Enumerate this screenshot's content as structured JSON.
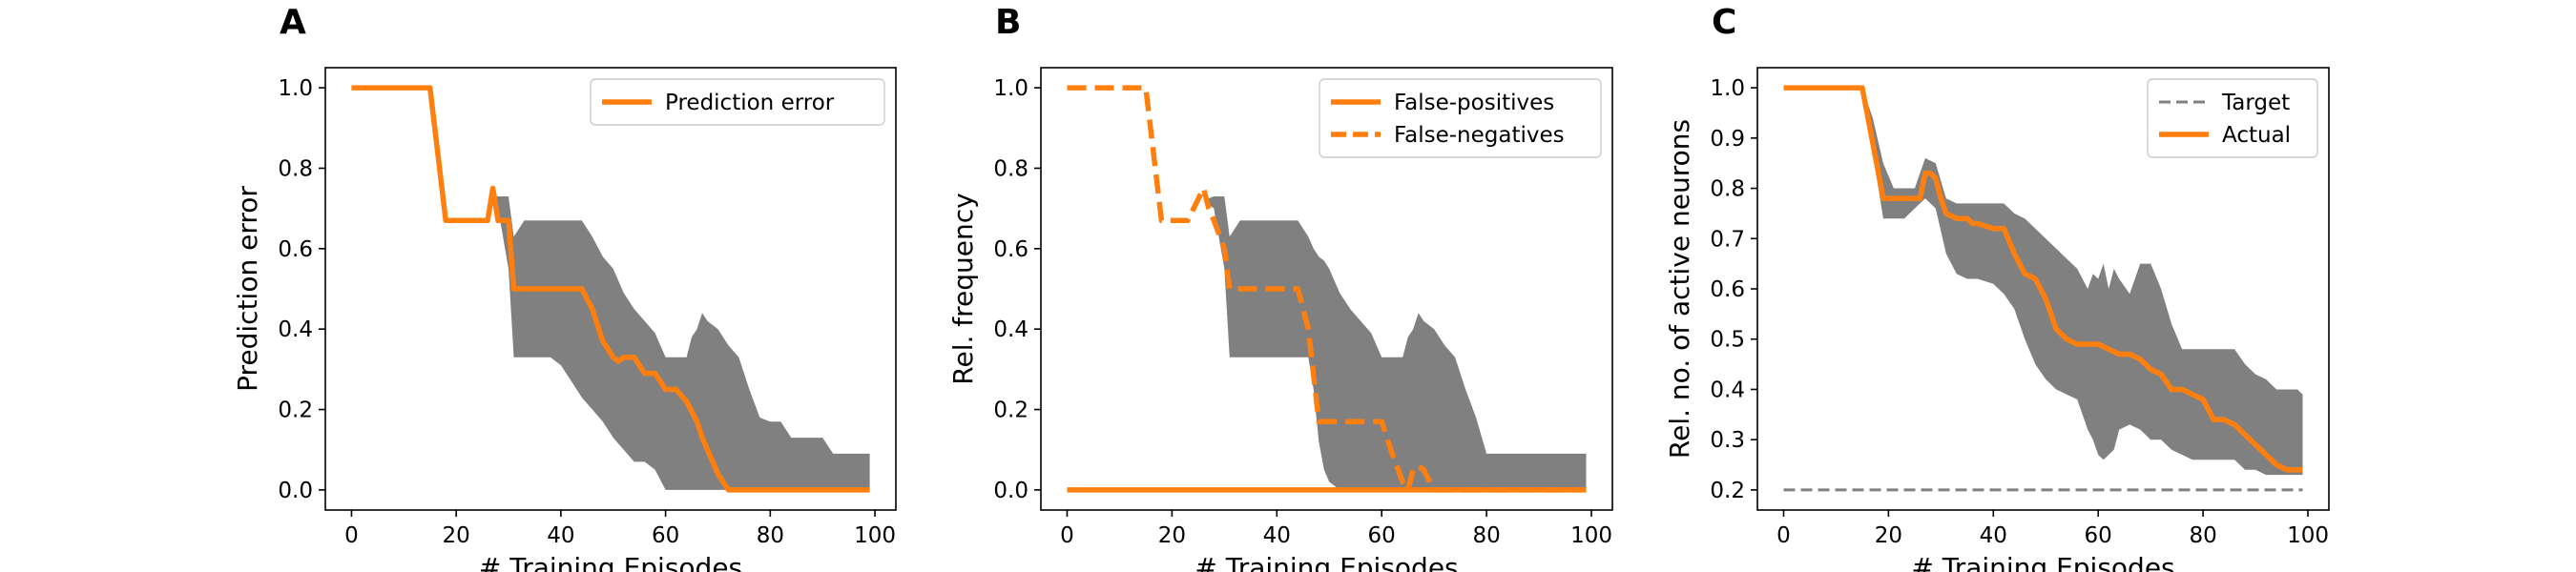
{
  "colors": {
    "line": "#ff7f0e",
    "band": "#808080",
    "target": "#808080"
  },
  "chart_data": [
    {
      "type": "line",
      "panel_label": "A",
      "xlabel": "# Training Episodes",
      "ylabel": "Prediction error",
      "xlim": [
        -5,
        104
      ],
      "ylim": [
        -0.05,
        1.05
      ],
      "xticks": [
        0,
        20,
        40,
        60,
        80,
        100
      ],
      "xtick_labels": [
        "0",
        "20",
        "40",
        "60",
        "80",
        "100"
      ],
      "yticks": [
        0.0,
        0.2,
        0.4,
        0.6,
        0.8,
        1.0
      ],
      "ytick_labels": [
        "0.0",
        "0.2",
        "0.4",
        "0.6",
        "0.8",
        "1.0"
      ],
      "grid": false,
      "legend_position": "upper right",
      "band": {
        "x": [
          26,
          28,
          30,
          31,
          33,
          36,
          38,
          40,
          42,
          44,
          46,
          48,
          50,
          52,
          54,
          56,
          58,
          60,
          62,
          64,
          65,
          66,
          67,
          68,
          70,
          72,
          74,
          76,
          78,
          80,
          82,
          84,
          86,
          88,
          90,
          92,
          94,
          96,
          98,
          99
        ],
        "upper": [
          0.72,
          0.73,
          0.73,
          0.63,
          0.67,
          0.67,
          0.67,
          0.67,
          0.67,
          0.67,
          0.63,
          0.58,
          0.55,
          0.49,
          0.45,
          0.42,
          0.39,
          0.33,
          0.33,
          0.33,
          0.38,
          0.4,
          0.44,
          0.42,
          0.4,
          0.36,
          0.33,
          0.25,
          0.18,
          0.17,
          0.17,
          0.13,
          0.13,
          0.13,
          0.13,
          0.09,
          0.09,
          0.09,
          0.09,
          0.09
        ],
        "lower": [
          0.72,
          0.7,
          0.55,
          0.33,
          0.33,
          0.33,
          0.33,
          0.31,
          0.27,
          0.23,
          0.2,
          0.17,
          0.13,
          0.1,
          0.07,
          0.07,
          0.05,
          0.0,
          0.0,
          0.0,
          0.0,
          0.0,
          0.0,
          0.0,
          0.0,
          0.0,
          0.0,
          0.0,
          0.0,
          0.0,
          0.0,
          0.0,
          0.0,
          0.0,
          0.0,
          0.0,
          0.0,
          0.0,
          0.0,
          0.0
        ]
      },
      "series": [
        {
          "name": "Prediction error",
          "style": "solid",
          "x": [
            0,
            15,
            18,
            26,
            27,
            28,
            30,
            31,
            33,
            44,
            46,
            48,
            50,
            51,
            52,
            54,
            56,
            58,
            60,
            62,
            64,
            66,
            67,
            68,
            70,
            72,
            74,
            76,
            78,
            80,
            82,
            84,
            86,
            88,
            90,
            92,
            94,
            96,
            98,
            99
          ],
          "y": [
            1.0,
            1.0,
            0.67,
            0.67,
            0.75,
            0.67,
            0.67,
            0.5,
            0.5,
            0.5,
            0.45,
            0.37,
            0.33,
            0.32,
            0.33,
            0.33,
            0.29,
            0.29,
            0.25,
            0.25,
            0.22,
            0.17,
            0.13,
            0.1,
            0.04,
            0.0,
            0.0,
            0.0,
            0.0,
            0.0,
            0.0,
            0.0,
            0.0,
            0.0,
            0.0,
            0.0,
            0.0,
            0.0,
            0.0,
            0.0
          ]
        }
      ]
    },
    {
      "type": "line",
      "panel_label": "B",
      "xlabel": "# Training Episodes",
      "ylabel": "Rel. frequency",
      "xlim": [
        -5,
        104
      ],
      "ylim": [
        -0.05,
        1.05
      ],
      "xticks": [
        0,
        20,
        40,
        60,
        80,
        100
      ],
      "xtick_labels": [
        "0",
        "20",
        "40",
        "60",
        "80",
        "100"
      ],
      "yticks": [
        0.0,
        0.2,
        0.4,
        0.6,
        0.8,
        1.0
      ],
      "ytick_labels": [
        "0.0",
        "0.2",
        "0.4",
        "0.6",
        "0.8",
        "1.0"
      ],
      "grid": false,
      "legend_position": "upper right",
      "band": {
        "x": [
          26,
          28,
          30,
          31,
          33,
          36,
          38,
          40,
          42,
          44,
          46,
          47,
          48,
          49,
          50,
          52,
          54,
          56,
          58,
          60,
          62,
          64,
          65,
          66,
          67,
          68,
          70,
          72,
          74,
          76,
          78,
          80,
          82,
          84,
          86,
          88,
          90,
          92,
          94,
          96,
          98,
          99
        ],
        "upper": [
          0.72,
          0.73,
          0.73,
          0.63,
          0.67,
          0.67,
          0.67,
          0.67,
          0.67,
          0.67,
          0.63,
          0.6,
          0.58,
          0.57,
          0.55,
          0.49,
          0.45,
          0.42,
          0.39,
          0.33,
          0.33,
          0.33,
          0.38,
          0.4,
          0.44,
          0.42,
          0.4,
          0.36,
          0.33,
          0.25,
          0.18,
          0.09,
          0.09,
          0.09,
          0.09,
          0.09,
          0.09,
          0.09,
          0.09,
          0.09,
          0.09,
          0.09
        ],
        "lower": [
          0.72,
          0.7,
          0.55,
          0.33,
          0.33,
          0.33,
          0.33,
          0.33,
          0.33,
          0.33,
          0.33,
          0.25,
          0.12,
          0.05,
          0.02,
          0.0,
          0.0,
          0.0,
          0.0,
          0.0,
          0.0,
          0.0,
          0.0,
          0.0,
          0.0,
          0.0,
          0.0,
          0.0,
          0.0,
          0.0,
          0.0,
          0.0,
          0.0,
          0.0,
          0.0,
          0.0,
          0.0,
          0.0,
          0.0,
          0.0,
          0.0,
          0.0
        ]
      },
      "series": [
        {
          "name": "False-positives",
          "style": "solid",
          "x": [
            0,
            99
          ],
          "y": [
            0.0,
            0.0
          ]
        },
        {
          "name": "False-negatives",
          "style": "dashed",
          "x": [
            0,
            15,
            18,
            23,
            26,
            27,
            28,
            30,
            31,
            44,
            46,
            48,
            50,
            51,
            52,
            60,
            62,
            64,
            65,
            66,
            67,
            68,
            70,
            72,
            74,
            76,
            78,
            80,
            82,
            84,
            86,
            88,
            90,
            92,
            94,
            96,
            98,
            99
          ],
          "y": [
            1.0,
            1.0,
            0.67,
            0.67,
            0.75,
            0.7,
            0.67,
            0.6,
            0.5,
            0.5,
            0.4,
            0.17,
            0.17,
            0.17,
            0.17,
            0.17,
            0.09,
            0.02,
            0.0,
            0.05,
            0.06,
            0.05,
            0.0,
            0.0,
            0.0,
            0.0,
            0.0,
            0.0,
            0.0,
            0.0,
            0.0,
            0.0,
            0.0,
            0.0,
            0.0,
            0.0,
            0.0,
            0.0
          ]
        }
      ]
    },
    {
      "type": "line",
      "panel_label": "C",
      "xlabel": "# Training Episodes",
      "ylabel": "Rel. no. of active neurons",
      "xlim": [
        -5,
        104
      ],
      "ylim": [
        0.16,
        1.04
      ],
      "xticks": [
        0,
        20,
        40,
        60,
        80,
        100
      ],
      "xtick_labels": [
        "0",
        "20",
        "40",
        "60",
        "80",
        "100"
      ],
      "yticks": [
        0.2,
        0.3,
        0.4,
        0.5,
        0.6,
        0.7,
        0.8,
        0.9,
        1.0
      ],
      "ytick_labels": [
        "0.2",
        "0.3",
        "0.4",
        "0.5",
        "0.6",
        "0.7",
        "0.8",
        "0.9",
        "1.0"
      ],
      "grid": false,
      "legend_position": "upper right",
      "band": {
        "x": [
          15,
          17,
          19,
          21,
          23,
          25,
          27,
          29,
          31,
          33,
          35,
          37,
          40,
          42,
          44,
          46,
          48,
          50,
          52,
          54,
          56,
          58,
          59,
          60,
          61,
          62,
          63,
          64,
          66,
          68,
          70,
          72,
          74,
          76,
          78,
          80,
          82,
          84,
          86,
          88,
          90,
          92,
          94,
          96,
          98,
          99
        ],
        "upper": [
          1.0,
          0.94,
          0.85,
          0.8,
          0.8,
          0.8,
          0.86,
          0.85,
          0.78,
          0.77,
          0.77,
          0.77,
          0.77,
          0.77,
          0.75,
          0.74,
          0.72,
          0.7,
          0.68,
          0.66,
          0.64,
          0.6,
          0.63,
          0.62,
          0.65,
          0.6,
          0.64,
          0.62,
          0.59,
          0.65,
          0.65,
          0.6,
          0.53,
          0.48,
          0.48,
          0.48,
          0.48,
          0.48,
          0.48,
          0.45,
          0.43,
          0.42,
          0.4,
          0.4,
          0.4,
          0.39
        ],
        "lower": [
          1.0,
          0.87,
          0.74,
          0.74,
          0.74,
          0.76,
          0.78,
          0.76,
          0.67,
          0.63,
          0.62,
          0.62,
          0.61,
          0.59,
          0.56,
          0.5,
          0.45,
          0.42,
          0.4,
          0.39,
          0.38,
          0.32,
          0.3,
          0.27,
          0.26,
          0.27,
          0.28,
          0.32,
          0.33,
          0.32,
          0.3,
          0.3,
          0.28,
          0.27,
          0.26,
          0.26,
          0.26,
          0.26,
          0.26,
          0.24,
          0.24,
          0.23,
          0.23,
          0.23,
          0.23,
          0.23
        ]
      },
      "series": [
        {
          "name": "Target",
          "style": "dashed-thin",
          "x": [
            0,
            99
          ],
          "y": [
            0.2,
            0.2
          ]
        },
        {
          "name": "Actual",
          "style": "solid",
          "x": [
            0,
            15,
            19,
            24,
            26,
            27,
            28,
            29,
            30,
            31,
            33,
            35,
            36,
            37,
            40,
            42,
            44,
            46,
            48,
            50,
            52,
            54,
            56,
            58,
            60,
            62,
            64,
            66,
            68,
            70,
            72,
            74,
            76,
            78,
            80,
            82,
            84,
            86,
            88,
            90,
            92,
            94,
            96,
            98,
            99
          ],
          "y": [
            1.0,
            1.0,
            0.78,
            0.78,
            0.78,
            0.83,
            0.83,
            0.82,
            0.78,
            0.75,
            0.74,
            0.74,
            0.73,
            0.73,
            0.72,
            0.72,
            0.67,
            0.63,
            0.62,
            0.58,
            0.52,
            0.5,
            0.49,
            0.49,
            0.49,
            0.48,
            0.47,
            0.47,
            0.46,
            0.44,
            0.43,
            0.4,
            0.4,
            0.39,
            0.38,
            0.34,
            0.34,
            0.33,
            0.31,
            0.29,
            0.27,
            0.25,
            0.24,
            0.24,
            0.24
          ]
        }
      ]
    }
  ]
}
